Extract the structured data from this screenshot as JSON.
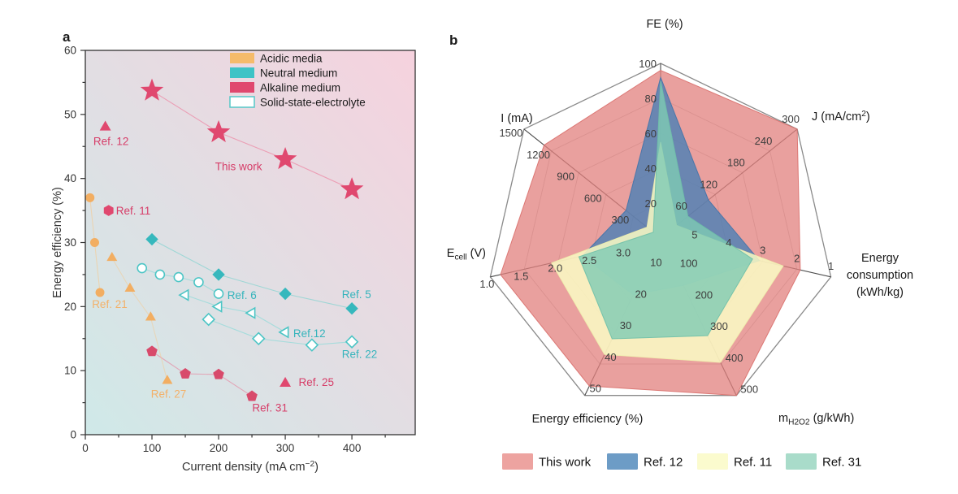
{
  "panels": {
    "a_label": "a",
    "b_label": "b"
  },
  "chart_data": [
    {
      "id": "panel_a",
      "type": "scatter",
      "xlabel_segments": [
        {
          "t": "Current density (mA cm"
        },
        {
          "t": "−2",
          "s": "sup"
        },
        {
          "t": ")"
        }
      ],
      "ylabel": "Energy efficiency (%)",
      "xlim": [
        0,
        495
      ],
      "ylim": [
        0,
        60
      ],
      "xticks": [
        0,
        100,
        200,
        300,
        400
      ],
      "xticks_minor": [
        50,
        150,
        250,
        350,
        450
      ],
      "yticks": [
        0,
        10,
        20,
        30,
        40,
        50,
        60
      ],
      "yticks_minor": [
        5,
        15,
        25,
        35,
        45,
        55
      ],
      "grid": false,
      "background_gradient": {
        "bottom_left": "#cfe9e8",
        "top_right": "#f6d2de"
      },
      "legend": [
        {
          "label": "Acidic media",
          "fill": "#f5bb6b",
          "outline": null
        },
        {
          "label": "Neutral medium",
          "fill": "#3ec3c6",
          "outline": null
        },
        {
          "label": "Alkaline medium",
          "fill": "#e0486f",
          "outline": null
        },
        {
          "label": "Solid-state-electrolyte",
          "fill": "#ffffff",
          "outline": "#56c8c8"
        }
      ],
      "series": [
        {
          "name": "This work",
          "medium": "alkaline",
          "marker": "star",
          "size": 10,
          "color": "#e0486f",
          "open": false,
          "line": true,
          "line_color": "#ec8aa6",
          "line_opacity": 0.75,
          "points": [
            [
              100,
              53.7
            ],
            [
              200,
              47.2
            ],
            [
              300,
              43.0
            ],
            [
              400,
              38.3
            ]
          ]
        },
        {
          "name": "Ref. 12",
          "medium": "alkaline",
          "marker": "triangle",
          "size": 7,
          "color": "#e0486f",
          "open": false,
          "line": false,
          "points": [
            [
              30,
              48
            ]
          ]
        },
        {
          "name": "Ref. 11",
          "medium": "alkaline",
          "marker": "hexagon",
          "size": 6.5,
          "color": "#e0486f",
          "open": false,
          "line": false,
          "points": [
            [
              35,
              35
            ]
          ]
        },
        {
          "name": "Ref. 25",
          "medium": "alkaline",
          "marker": "triangle",
          "size": 7,
          "color": "#e0486f",
          "open": false,
          "line": false,
          "points": [
            [
              300,
              8
            ]
          ]
        },
        {
          "name": "Ref. 31",
          "medium": "alkaline",
          "marker": "pentagon",
          "size": 6.5,
          "color": "#d84a6b",
          "open": false,
          "line": true,
          "line_color": "#e58ba4",
          "line_opacity": 0.7,
          "points": [
            [
              100,
              13
            ],
            [
              150,
              9.5
            ],
            [
              200,
              9.4
            ],
            [
              250,
              6
            ]
          ]
        },
        {
          "name": "Ref. 21",
          "medium": "acidic",
          "marker": "circle",
          "size": 5.5,
          "color": "#f2ae62",
          "open": false,
          "line": true,
          "line_color": "#f6c98f",
          "line_opacity": 0.6,
          "points": [
            [
              7,
              37
            ],
            [
              14,
              30
            ],
            [
              22,
              22.2
            ]
          ]
        },
        {
          "name": "Ref. 27",
          "medium": "acidic",
          "marker": "triangle",
          "size": 6.5,
          "color": "#f2ae62",
          "open": false,
          "line": true,
          "line_color": "#f6c98f",
          "line_opacity": 0.5,
          "points": [
            [
              40,
              27.6
            ],
            [
              67,
              22.8
            ],
            [
              98,
              18.3
            ],
            [
              123,
              8.4
            ]
          ]
        },
        {
          "name": "Ref. 5",
          "medium": "neutral",
          "marker": "diamond",
          "size": 7,
          "color": "#36b8bd",
          "open": false,
          "line": true,
          "line_color": "#8fd4d2",
          "line_opacity": 0.8,
          "points": [
            [
              100,
              30.5
            ],
            [
              200,
              25
            ],
            [
              300,
              22
            ],
            [
              400,
              19.7
            ]
          ]
        },
        {
          "name": "Ref. 6",
          "medium": "solid-state",
          "marker": "circle",
          "size": 5.5,
          "color": "#4cc5c5",
          "open": true,
          "line": true,
          "line_color": "#9fdcda",
          "line_opacity": 0.9,
          "points": [
            [
              85,
              26
            ],
            [
              112,
              25
            ],
            [
              140,
              24.6
            ],
            [
              170,
              23.8
            ],
            [
              200,
              22
            ]
          ]
        },
        {
          "name": "Ref. 12 (SSE)",
          "medium": "solid-state",
          "marker": "triangle_left",
          "size": 6.5,
          "color": "#4cc5c5",
          "open": true,
          "line": true,
          "line_color": "#9fdcda",
          "line_opacity": 0.9,
          "points": [
            [
              150,
              21.8
            ],
            [
              200,
              20
            ],
            [
              250,
              19
            ],
            [
              300,
              16
            ]
          ]
        },
        {
          "name": "Ref. 22",
          "medium": "solid-state",
          "marker": "diamond",
          "size": 6.5,
          "color": "#4cc5c5",
          "open": true,
          "line": true,
          "line_color": "#9fdcda",
          "line_opacity": 0.9,
          "points": [
            [
              185,
              18
            ],
            [
              260,
              15
            ],
            [
              340,
              14
            ],
            [
              400,
              14.5
            ]
          ]
        }
      ],
      "annotations": [
        {
          "text": "Ref. 12",
          "x": 12,
          "y": 45.2,
          "color": "#d63d68",
          "anchor": "start"
        },
        {
          "text": "This work",
          "x": 230,
          "y": 41.3,
          "color": "#d63d68",
          "anchor": "middle"
        },
        {
          "text": "Ref. 11",
          "x": 46,
          "y": 34.4,
          "color": "#d63d68",
          "anchor": "start"
        },
        {
          "text": "Ref. 21",
          "x": 10,
          "y": 19.8,
          "color": "#f3b169",
          "anchor": "start"
        },
        {
          "text": "Ref. 27",
          "x": 125,
          "y": 5.8,
          "color": "#f3b169",
          "anchor": "middle"
        },
        {
          "text": "Ref. 31",
          "x": 277,
          "y": 3.6,
          "color": "#d63d68",
          "anchor": "middle"
        },
        {
          "text": "Ref. 25",
          "x": 320,
          "y": 7.6,
          "color": "#d63d68",
          "anchor": "start"
        },
        {
          "text": "Ref. 6",
          "x": 213,
          "y": 21.2,
          "color": "#35b4bc",
          "anchor": "start"
        },
        {
          "text": "Ref. 5",
          "x": 385,
          "y": 21.3,
          "color": "#35b4bc",
          "anchor": "start"
        },
        {
          "text": "Ref.12",
          "x": 312,
          "y": 15.2,
          "color": "#35b4bc",
          "anchor": "start"
        },
        {
          "text": "Ref. 22",
          "x": 385,
          "y": 12.0,
          "color": "#35b4bc",
          "anchor": "start"
        }
      ]
    },
    {
      "id": "panel_b",
      "type": "radar",
      "tick_levels": [
        0.2,
        0.4,
        0.6,
        0.8,
        1.0
      ],
      "axes": [
        {
          "key": "FE",
          "label_lines": [
            [
              {
                "t": "FE (%)"
              }
            ]
          ],
          "ticks": [
            20,
            40,
            60,
            80,
            100
          ],
          "center": 0,
          "outer": 100
        },
        {
          "key": "J",
          "label_lines": [
            [
              {
                "t": "J (mA/cm"
              },
              {
                "t": "2",
                "s": "sup"
              },
              {
                "t": ")"
              }
            ]
          ],
          "ticks": [
            60,
            120,
            180,
            240,
            300
          ],
          "center": 0,
          "outer": 300
        },
        {
          "key": "EC",
          "label_lines": [
            [
              {
                "t": "Energy"
              }
            ],
            [
              {
                "t": "consumption"
              }
            ],
            [
              {
                "t": "(kWh/kg)"
              }
            ]
          ],
          "ticks": [
            5,
            4,
            3,
            2,
            1
          ],
          "center": 6,
          "outer": 1
        },
        {
          "key": "M",
          "label_lines": [
            [
              {
                "t": "m"
              },
              {
                "t": "H2O2",
                "s": "sub"
              },
              {
                "t": " (g/kWh)"
              }
            ]
          ],
          "ticks": [
            100,
            200,
            300,
            400,
            500
          ],
          "center": 0,
          "outer": 500
        },
        {
          "key": "EE",
          "label_lines": [
            [
              {
                "t": "Energy efficiency (%)"
              }
            ]
          ],
          "ticks": [
            10,
            20,
            30,
            40,
            50
          ],
          "center": 0,
          "outer": 50
        },
        {
          "key": "Ecell",
          "label_lines": [
            [
              {
                "t": "E"
              },
              {
                "t": "cell",
                "s": "sub"
              },
              {
                "t": " (V)"
              }
            ]
          ],
          "ticks": [
            "3.0",
            "2.5",
            "2.0",
            "1.5",
            "1.0"
          ],
          "center": 3.5,
          "outer": 1.0
        },
        {
          "key": "I",
          "label_lines": [
            [
              {
                "t": "I (mA)"
              }
            ]
          ],
          "ticks": [
            300,
            600,
            900,
            1200,
            1500
          ],
          "center": 0,
          "outer": 1500
        }
      ],
      "series": [
        {
          "name": "This work",
          "fill": "#e2807d",
          "stroke": "#d96f6c",
          "opacity": 0.75,
          "legend_swatch": "#eda3a0",
          "values": {
            "FE": 96,
            "J": 300,
            "EC": 1.9,
            "M": 500,
            "EE": 47,
            "Ecell": 1.15,
            "I": 1280
          }
        },
        {
          "name": "Ref. 12",
          "fill": "#4a7fb5",
          "stroke": "#4273a8",
          "opacity": 0.8,
          "legend_swatch": "#6d9cc6",
          "values": {
            "FE": 92,
            "J": 105,
            "EC": 3.1,
            "M": 150,
            "EE": 18,
            "Ecell": 2.35,
            "I": 380
          }
        },
        {
          "name": "Ref. 11",
          "fill": "#fafbc4",
          "stroke": "#f0f0ae",
          "opacity": 0.85,
          "legend_swatch": "#fbfbce",
          "values": {
            "FE": 55,
            "J": 35,
            "EC": 2.4,
            "M": 395,
            "EE": 37,
            "Ecell": 1.9,
            "I": 150
          }
        },
        {
          "name": "Ref. 31",
          "fill": "#7ecbb4",
          "stroke": "#6fc0a8",
          "opacity": 0.8,
          "legend_swatch": "#a9dcca",
          "values": {
            "FE": 90,
            "J": 60,
            "EC": 3.3,
            "M": 310,
            "EE": 32,
            "Ecell": 2.3,
            "I": 80
          }
        }
      ]
    }
  ]
}
